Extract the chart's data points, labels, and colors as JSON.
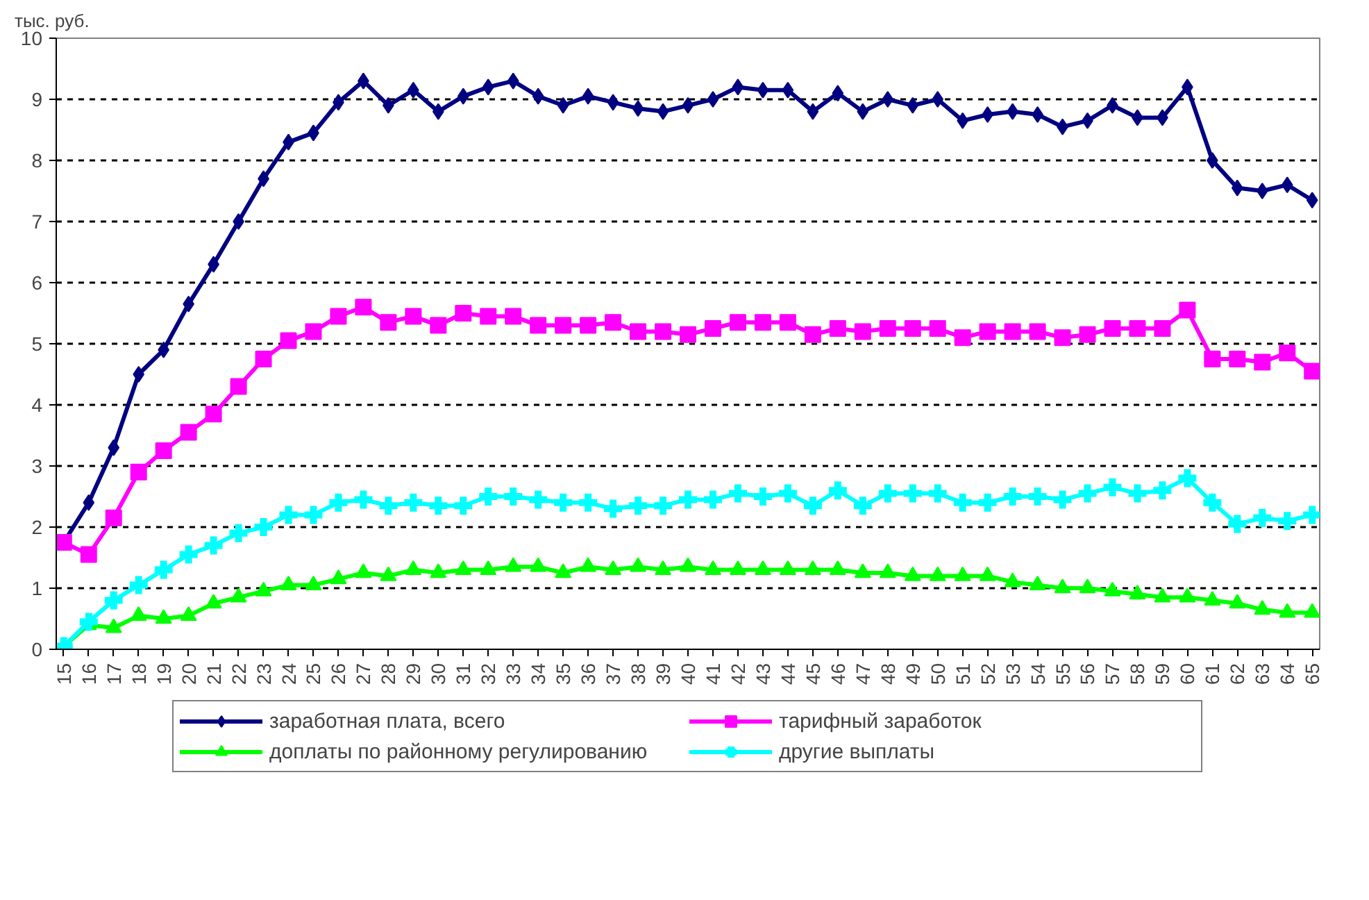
{
  "chart_data": {
    "type": "line",
    "ylabel": "тыс. руб.",
    "categories": [
      "15",
      "16",
      "17",
      "18",
      "19",
      "20",
      "21",
      "22",
      "23",
      "24",
      "25",
      "26",
      "27",
      "28",
      "29",
      "30",
      "31",
      "32",
      "33",
      "34",
      "35",
      "36",
      "37",
      "38",
      "39",
      "40",
      "41",
      "42",
      "43",
      "44",
      "45",
      "46",
      "47",
      "48",
      "49",
      "50",
      "51",
      "52",
      "53",
      "54",
      "55",
      "56",
      "57",
      "58",
      "59",
      "60",
      "61",
      "62",
      "63",
      "64",
      "65"
    ],
    "ylim": [
      0,
      10
    ],
    "yticks": [
      0,
      1,
      2,
      3,
      4,
      5,
      6,
      7,
      8,
      9,
      10
    ],
    "grid": "y",
    "legend": "bottom",
    "line_style": "solid",
    "series": [
      {
        "name": "заработная плата, всего",
        "color": "#000080",
        "marker": "diamond",
        "values": [
          1.75,
          2.4,
          3.3,
          4.5,
          4.9,
          5.65,
          6.3,
          7.0,
          7.7,
          8.3,
          8.45,
          8.95,
          9.3,
          8.9,
          9.15,
          8.8,
          9.05,
          9.2,
          9.3,
          9.05,
          8.9,
          9.05,
          8.95,
          8.85,
          8.8,
          8.9,
          9.0,
          9.2,
          9.15,
          9.15,
          8.8,
          9.1,
          8.8,
          9.0,
          8.9,
          9.0,
          8.65,
          8.75,
          8.8,
          8.75,
          8.55,
          8.65,
          8.9,
          8.7,
          8.7,
          9.2,
          8.0,
          7.55,
          7.5,
          7.6,
          7.35
        ]
      },
      {
        "name": "тарифный заработок",
        "color": "#ff00ff",
        "marker": "square",
        "values": [
          1.75,
          1.55,
          2.15,
          2.9,
          3.25,
          3.55,
          3.85,
          4.3,
          4.75,
          5.05,
          5.2,
          5.45,
          5.6,
          5.35,
          5.45,
          5.3,
          5.5,
          5.45,
          5.45,
          5.3,
          5.3,
          5.3,
          5.35,
          5.2,
          5.2,
          5.15,
          5.25,
          5.35,
          5.35,
          5.35,
          5.15,
          5.25,
          5.2,
          5.25,
          5.25,
          5.25,
          5.1,
          5.2,
          5.2,
          5.2,
          5.1,
          5.15,
          5.25,
          5.25,
          5.25,
          5.55,
          4.75,
          4.75,
          4.7,
          4.85,
          4.55
        ]
      },
      {
        "name": "доплаты по районному регулированию",
        "color": "#00ff00",
        "marker": "triangle",
        "values": [
          0.05,
          0.4,
          0.35,
          0.55,
          0.5,
          0.55,
          0.75,
          0.85,
          0.95,
          1.05,
          1.05,
          1.15,
          1.25,
          1.2,
          1.3,
          1.25,
          1.3,
          1.3,
          1.35,
          1.35,
          1.25,
          1.35,
          1.3,
          1.35,
          1.3,
          1.35,
          1.3,
          1.3,
          1.3,
          1.3,
          1.3,
          1.3,
          1.25,
          1.25,
          1.2,
          1.2,
          1.2,
          1.2,
          1.1,
          1.05,
          1.0,
          1.0,
          0.95,
          0.9,
          0.85,
          0.85,
          0.8,
          0.75,
          0.65,
          0.6,
          0.6
        ]
      },
      {
        "name": "другие выплаты",
        "color": "#00ffff",
        "marker": "cross",
        "values": [
          0.05,
          0.45,
          0.8,
          1.05,
          1.3,
          1.55,
          1.7,
          1.9,
          2.0,
          2.2,
          2.2,
          2.4,
          2.45,
          2.35,
          2.4,
          2.35,
          2.35,
          2.5,
          2.5,
          2.45,
          2.4,
          2.4,
          2.3,
          2.35,
          2.35,
          2.45,
          2.45,
          2.55,
          2.5,
          2.55,
          2.35,
          2.6,
          2.35,
          2.55,
          2.55,
          2.55,
          2.4,
          2.4,
          2.5,
          2.5,
          2.45,
          2.55,
          2.65,
          2.55,
          2.6,
          2.8,
          2.4,
          2.05,
          2.15,
          2.1,
          2.2
        ]
      }
    ]
  }
}
